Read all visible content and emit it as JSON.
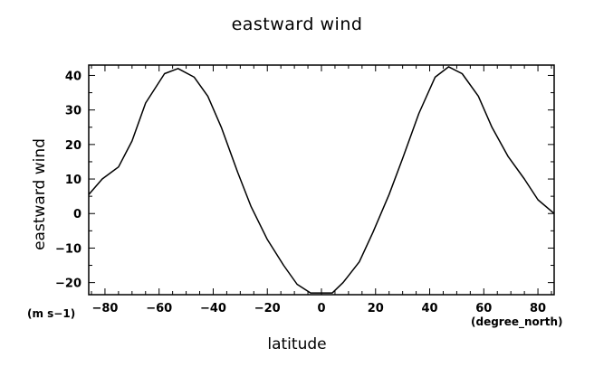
{
  "chart_data": {
    "type": "line",
    "title": "eastward wind",
    "xlabel": "latitude",
    "ylabel": "eastward wind",
    "x_unit": "(degree_north)",
    "y_unit": "(m s−1)",
    "xlim": [
      -86,
      86
    ],
    "ylim": [
      -23.5,
      43
    ],
    "x_ticks": [
      -80,
      -60,
      -40,
      -20,
      0,
      20,
      40,
      60,
      80
    ],
    "y_ticks": [
      -20,
      -10,
      0,
      10,
      20,
      30,
      40
    ],
    "grid": false,
    "series": [
      {
        "name": "",
        "color": "#000000",
        "x": [
          -86,
          -81,
          -75,
          -70,
          -65,
          -58,
          -53,
          -47,
          -42,
          -37,
          -31,
          -26,
          -20,
          -14,
          -9,
          -4,
          0,
          4,
          8,
          14,
          19,
          25,
          30,
          36,
          42,
          47,
          52,
          58,
          63,
          69,
          75,
          80,
          86
        ],
        "y": [
          5.5,
          10,
          13.5,
          21,
          32,
          40.5,
          42,
          39.5,
          34,
          25,
          12,
          2,
          -7.5,
          -15,
          -20.5,
          -23,
          -23,
          -23,
          -20,
          -14,
          -5.5,
          5.5,
          16,
          29,
          39.5,
          42.5,
          40.5,
          34,
          25,
          16.5,
          10,
          4,
          0
        ]
      }
    ]
  }
}
